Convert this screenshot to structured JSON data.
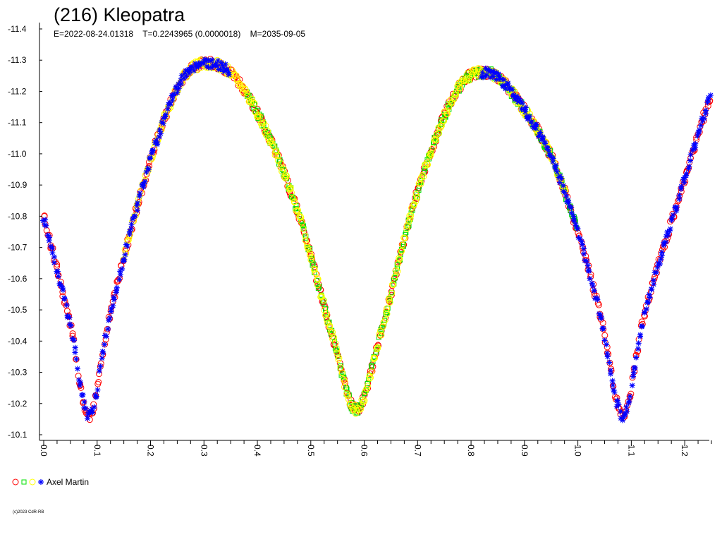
{
  "chart_data": {
    "type": "scatter",
    "title": "(216) Kleopatra",
    "subtitle": "E=2022-08-24.01318    T=0.2243965 (0.0000018)    M=2035-09-05",
    "xlabel": "",
    "ylabel": "",
    "xlim": [
      0.0,
      1.25
    ],
    "ylim": [
      -10.1,
      -11.4
    ],
    "y_inverted": true,
    "grid": false,
    "yticks": [
      "-11.4",
      "-11.3",
      "-11.2",
      "-11.1",
      "-11.0",
      "-10.9",
      "-10.8",
      "-10.7",
      "-10.6",
      "-10.5",
      "-10.4",
      "-10.3",
      "-10.2",
      "-10.1"
    ],
    "xticks": [
      "0.0",
      "0.1",
      "0.2",
      "0.3",
      "0.4",
      "0.5",
      "0.6",
      "0.7",
      "0.8",
      "0.9",
      "1.0",
      "1.1",
      "1.2"
    ],
    "lightcurve_shape": {
      "phase": [
        0.0,
        0.05,
        0.085,
        0.12,
        0.2,
        0.26,
        0.31,
        0.36,
        0.42,
        0.48,
        0.54,
        0.585,
        0.63,
        0.7,
        0.78,
        0.83,
        0.9,
        0.96,
        1.04,
        1.085,
        1.12,
        1.2,
        1.25
      ],
      "mag": [
        -10.8,
        -10.45,
        -10.16,
        -10.45,
        -10.98,
        -11.24,
        -11.29,
        -11.24,
        -11.06,
        -10.79,
        -10.42,
        -10.18,
        -10.42,
        -10.88,
        -11.22,
        -11.26,
        -11.14,
        -10.95,
        -10.5,
        -10.16,
        -10.45,
        -10.92,
        -11.2
      ]
    },
    "series": [
      {
        "name": "",
        "color": "#ff0000",
        "marker": "circle",
        "phase_range": [
          0.0,
          1.25
        ]
      },
      {
        "name": "",
        "color": "#00e000",
        "marker": "square",
        "phase_range": [
          0.38,
          1.0
        ]
      },
      {
        "name": "",
        "color": "#ffff00",
        "marker": "circle",
        "phase_range": [
          0.15,
          0.98
        ]
      },
      {
        "name": "",
        "color": "#0000ff",
        "marker": "cross",
        "phase_range": [
          0.0,
          0.35
        ]
      },
      {
        "name": "",
        "color": "#0000ff",
        "marker": "cross",
        "phase_range": [
          0.82,
          1.25
        ]
      }
    ],
    "legend": {
      "label": "Axel Martin",
      "placement": "bottom-left",
      "markers": [
        {
          "color": "#ff0000",
          "marker": "circle"
        },
        {
          "color": "#00e000",
          "marker": "square"
        },
        {
          "color": "#ffff00",
          "marker": "circle"
        },
        {
          "color": "#0000ff",
          "marker": "cross"
        }
      ]
    }
  },
  "footer": {
    "copyright": "(c)2023 CdR-RB"
  }
}
